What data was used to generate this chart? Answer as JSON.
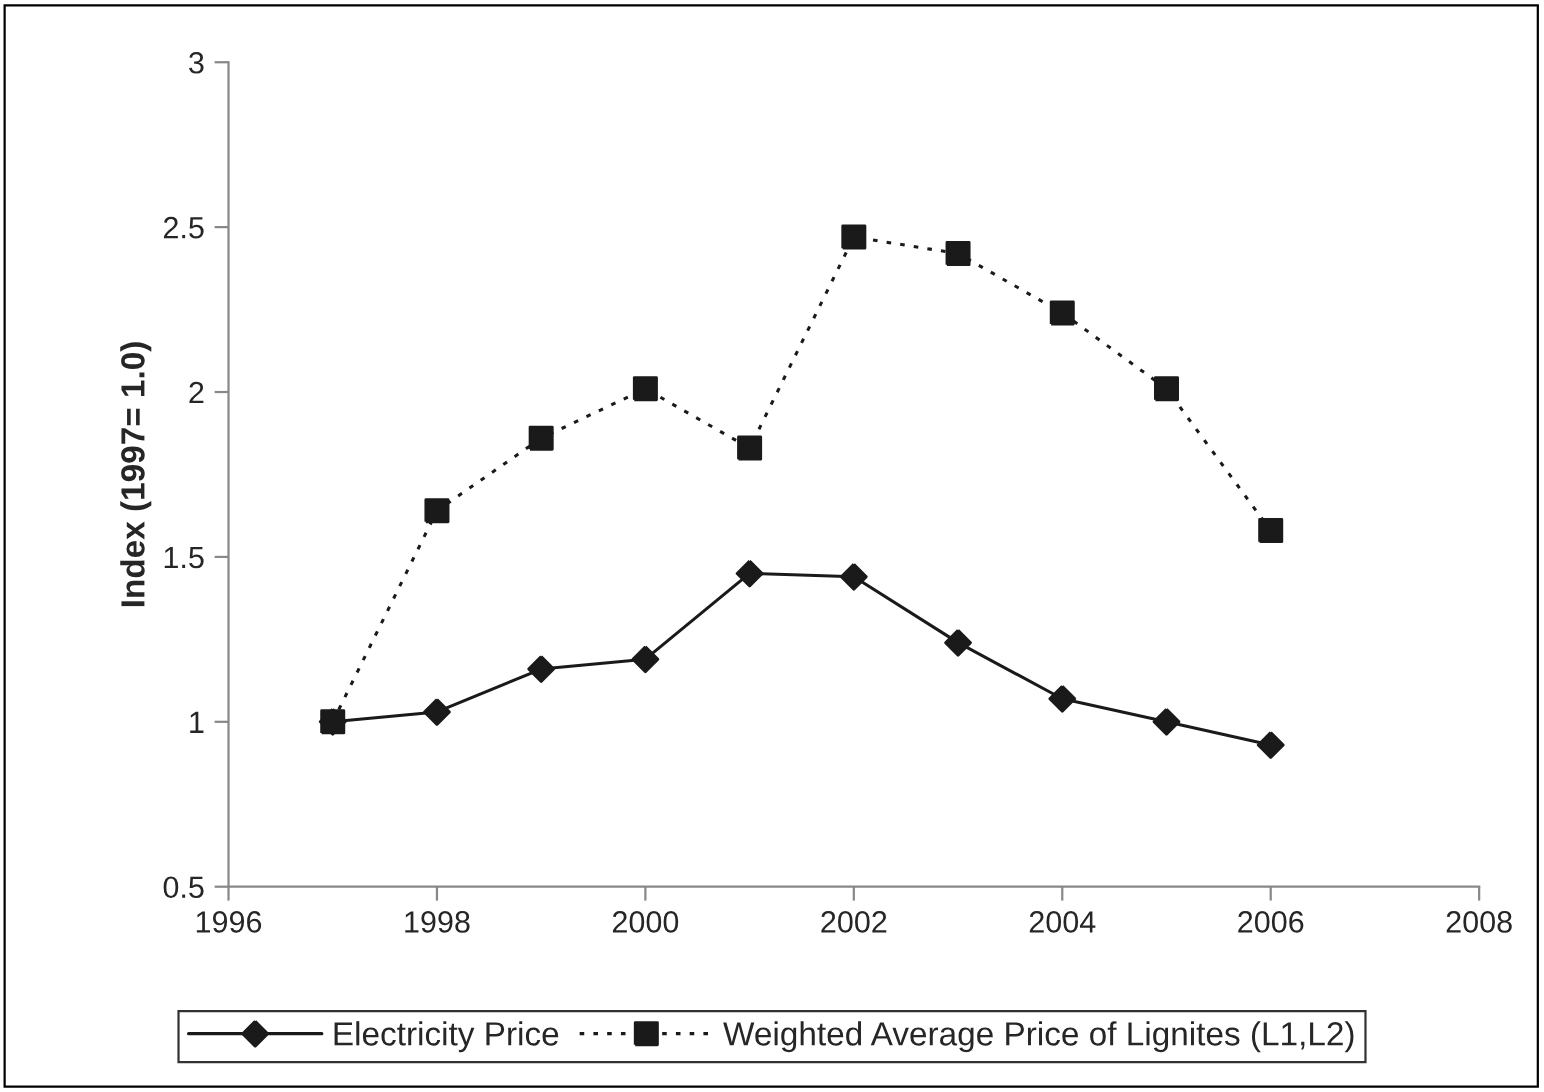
{
  "chart_data": {
    "type": "line",
    "ylabel": "Index (1997= 1.0)",
    "x": [
      1997,
      1998,
      1999,
      2000,
      2001,
      2002,
      2003,
      2004,
      2005,
      2006
    ],
    "series": [
      {
        "name": "Electricity Price",
        "color": "#1a1a1a",
        "marker": "diamond",
        "line_style": "solid",
        "values": [
          1.0,
          1.03,
          1.16,
          1.19,
          1.45,
          1.44,
          1.24,
          1.07,
          1.0,
          0.93
        ]
      },
      {
        "name": "Weighted Average Price of Lignites (L1,L2)",
        "color": "#1a1a1a",
        "marker": "square",
        "line_style": "dotted",
        "values": [
          1.0,
          1.64,
          1.86,
          2.01,
          1.83,
          2.47,
          2.42,
          2.24,
          2.01,
          1.58
        ]
      }
    ],
    "xlim": [
      1996,
      2008
    ],
    "xticks": [
      1996,
      1998,
      2000,
      2002,
      2004,
      2006,
      2008
    ],
    "ylim": [
      0.5,
      3
    ],
    "yticks": [
      0.5,
      1,
      1.5,
      2,
      2.5,
      3
    ],
    "grid": false,
    "legend": "bottom"
  }
}
